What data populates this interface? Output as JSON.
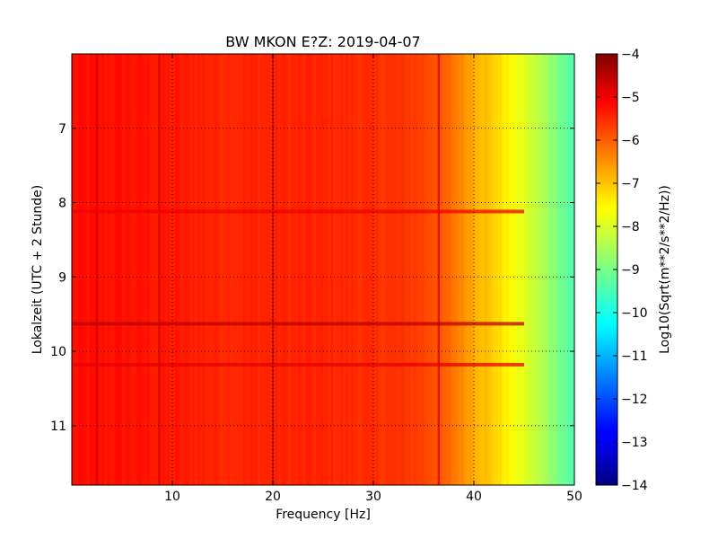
{
  "chart_data": {
    "type": "heatmap",
    "title": "BW MKON E?Z: 2019-04-07",
    "xlabel": "Frequency [Hz]",
    "ylabel": "Lokalzeit (UTC + 2 Stunde)",
    "xlim": [
      0,
      50
    ],
    "ylim": [
      6.0,
      11.8
    ],
    "y_inverted": true,
    "x_ticks": [
      10,
      20,
      30,
      40,
      50
    ],
    "y_ticks": [
      7,
      8,
      9,
      10,
      11
    ],
    "grid": true,
    "grid_style": "dotted",
    "colormap": "jet",
    "colorbar": {
      "label": "Log10(Sqrt(m**2/s**2/Hz))",
      "range": [
        -14,
        -4
      ],
      "ticks": [
        -4,
        -5,
        -6,
        -7,
        -8,
        -9,
        -10,
        -11,
        -12,
        -13,
        -14
      ]
    },
    "frequency_profile": [
      {
        "x": 0,
        "value": -5.4
      },
      {
        "x": 5,
        "value": -5.4
      },
      {
        "x": 10,
        "value": -5.5
      },
      {
        "x": 15,
        "value": -5.6
      },
      {
        "x": 20,
        "value": -5.6
      },
      {
        "x": 25,
        "value": -5.6
      },
      {
        "x": 30,
        "value": -5.7
      },
      {
        "x": 34,
        "value": -5.8
      },
      {
        "x": 36,
        "value": -6.0
      },
      {
        "x": 38,
        "value": -6.4
      },
      {
        "x": 40,
        "value": -6.9
      },
      {
        "x": 42,
        "value": -7.3
      },
      {
        "x": 44,
        "value": -7.8
      },
      {
        "x": 46,
        "value": -8.3
      },
      {
        "x": 48,
        "value": -8.9
      },
      {
        "x": 50,
        "value": -9.5
      }
    ],
    "vertical_lines": [
      {
        "x": 2.5,
        "value": -4.8
      },
      {
        "x": 8.7,
        "value": -4.8
      },
      {
        "x": 20.0,
        "value": -4.6
      },
      {
        "x": 36.5,
        "value": -4.7
      }
    ],
    "horizontal_bands": [
      {
        "y": 9.63,
        "value": -4.6
      },
      {
        "y": 10.18,
        "value": -5.0
      },
      {
        "y": 8.12,
        "value": -5.1
      }
    ]
  }
}
